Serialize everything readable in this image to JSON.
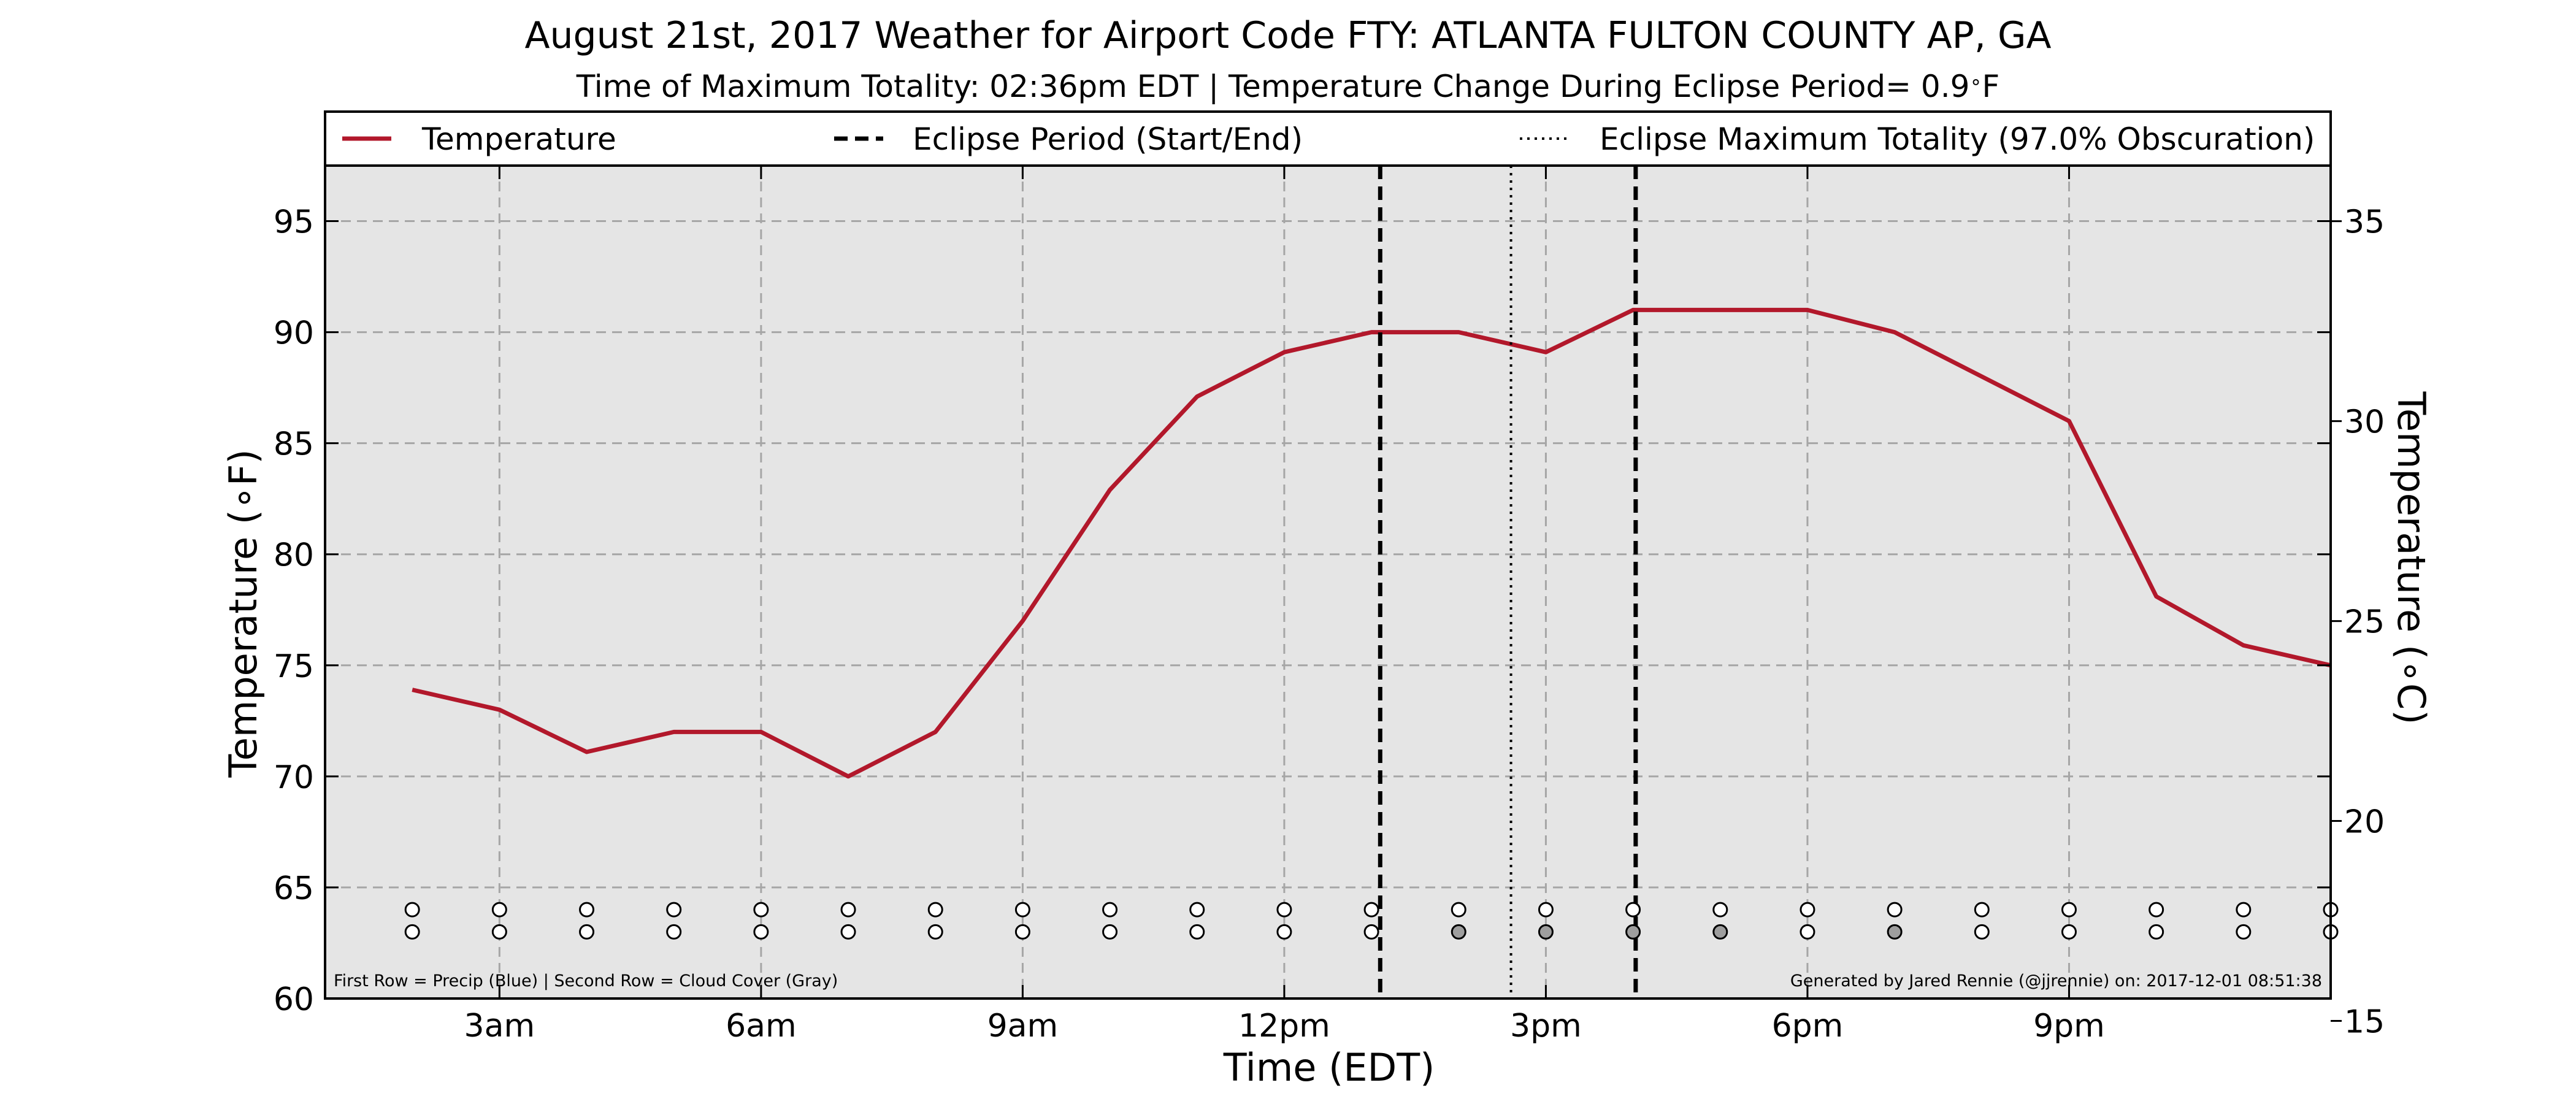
{
  "chart_data": {
    "type": "line",
    "title": "August 21st, 2017 Weather for Airport Code FTY: ATLANTA FULTON COUNTY AP, GA",
    "subtitle_prefix": "Time of Maximum Totality: 02:36pm EDT | Temperature Change During Eclipse Period= 0.9",
    "subtitle_deg": "∘",
    "subtitle_unit": "F",
    "xlabel": "Time (EDT)",
    "ylabel": "Temperature (∘F)",
    "ylabel_right": "Temperature (∘C)",
    "xlim": [
      1.0,
      24.0
    ],
    "ylim": [
      60,
      97.5
    ],
    "y2lim": [
      15.56,
      36.39
    ],
    "grid": true,
    "legend_placement": "top",
    "legend": [
      {
        "label": "Temperature",
        "style": "solid",
        "color": "#B2182B"
      },
      {
        "label": "Eclipse Period (Start/End)",
        "style": "dashed",
        "color": "#000000"
      },
      {
        "label": "Eclipse Maximum Totality (97.0% Obscuration)",
        "style": "dotted",
        "color": "#000000"
      }
    ],
    "x_ticks": [
      {
        "x": 3,
        "label": "3am"
      },
      {
        "x": 6,
        "label": "6am"
      },
      {
        "x": 9,
        "label": "9am"
      },
      {
        "x": 12,
        "label": "12pm"
      },
      {
        "x": 15,
        "label": "3pm"
      },
      {
        "x": 18,
        "label": "6pm"
      },
      {
        "x": 21,
        "label": "9pm"
      }
    ],
    "y_ticks": [
      60,
      65,
      70,
      75,
      80,
      85,
      90,
      95
    ],
    "y2_ticks": [
      15,
      20,
      25,
      30,
      35
    ],
    "series": [
      {
        "name": "Temperature",
        "color": "#B2182B",
        "x": [
          2,
          3,
          4,
          5,
          6,
          7,
          8,
          9,
          10,
          11,
          12,
          13,
          14,
          15,
          16,
          17,
          18,
          19,
          20,
          21,
          22,
          23,
          24
        ],
        "y": [
          73.9,
          73.0,
          71.1,
          72.0,
          72.0,
          70.0,
          72.0,
          77.0,
          82.9,
          87.1,
          89.1,
          90.0,
          90.0,
          89.1,
          91.0,
          91.0,
          91.0,
          90.0,
          88.0,
          86.0,
          78.1,
          75.9,
          75.0
        ]
      }
    ],
    "eclipse_start_x": 13.1,
    "eclipse_end_x": 16.03,
    "max_totality_x": 14.6,
    "markers": {
      "precip_y": 64,
      "cloud_y": 63,
      "x": [
        2,
        3,
        4,
        5,
        6,
        7,
        8,
        9,
        10,
        11,
        12,
        13,
        14,
        15,
        16,
        17,
        18,
        19,
        20,
        21,
        22,
        23,
        24
      ],
      "precip_fill": [
        "#ffffff",
        "#ffffff",
        "#ffffff",
        "#ffffff",
        "#ffffff",
        "#ffffff",
        "#ffffff",
        "#ffffff",
        "#ffffff",
        "#ffffff",
        "#ffffff",
        "#ffffff",
        "#ffffff",
        "#ffffff",
        "#ffffff",
        "#ffffff",
        "#ffffff",
        "#ffffff",
        "#ffffff",
        "#ffffff",
        "#ffffff",
        "#ffffff",
        "#ffffff"
      ],
      "cloud_fill": [
        "#ffffff",
        "#ffffff",
        "#ffffff",
        "#ffffff",
        "#ffffff",
        "#ffffff",
        "#ffffff",
        "#ffffff",
        "#ffffff",
        "#ffffff",
        "#ffffff",
        "#ffffff",
        "#9e9e9e",
        "#9e9e9e",
        "#9e9e9e",
        "#9e9e9e",
        "#ffffff",
        "#9e9e9e",
        "#ffffff",
        "#ffffff",
        "#ffffff",
        "#ffffff",
        "#ffffff"
      ]
    },
    "note_left": "First Row = Precip (Blue) | Second Row = Cloud Cover (Gray)",
    "note_right": "Generated by Jared Rennie (@jjrennie) on: 2017-12-01 08:51:38",
    "colors": {
      "plot_bg": "#e5e5e5",
      "grid": "#a6a6a6",
      "line": "#B2182B"
    }
  }
}
